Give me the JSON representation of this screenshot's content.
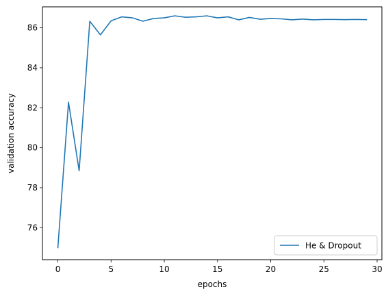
{
  "chart_data": {
    "type": "line",
    "title": "",
    "xlabel": "epochs",
    "ylabel": "validation accuracy",
    "xlim": [
      -1.45,
      30.45
    ],
    "ylim": [
      74.4,
      87.05
    ],
    "xticks": [
      0,
      5,
      10,
      15,
      20,
      25,
      30
    ],
    "yticks": [
      76,
      78,
      80,
      82,
      84,
      86
    ],
    "grid": false,
    "legend_position": "lower-right",
    "series": [
      {
        "name": "He & Dropout",
        "color": "#1f77b4",
        "x": [
          0,
          1,
          2,
          3,
          4,
          5,
          6,
          7,
          8,
          9,
          10,
          11,
          12,
          13,
          14,
          15,
          16,
          17,
          18,
          19,
          20,
          21,
          22,
          23,
          24,
          25,
          26,
          27,
          28,
          29
        ],
        "y": [
          75.0,
          82.28,
          78.85,
          86.33,
          85.65,
          86.35,
          86.55,
          86.5,
          86.33,
          86.47,
          86.5,
          86.6,
          86.53,
          86.55,
          86.6,
          86.5,
          86.55,
          86.4,
          86.52,
          86.43,
          86.47,
          86.45,
          86.4,
          86.44,
          86.4,
          86.42,
          86.42,
          86.41,
          86.42,
          86.41
        ]
      }
    ]
  }
}
